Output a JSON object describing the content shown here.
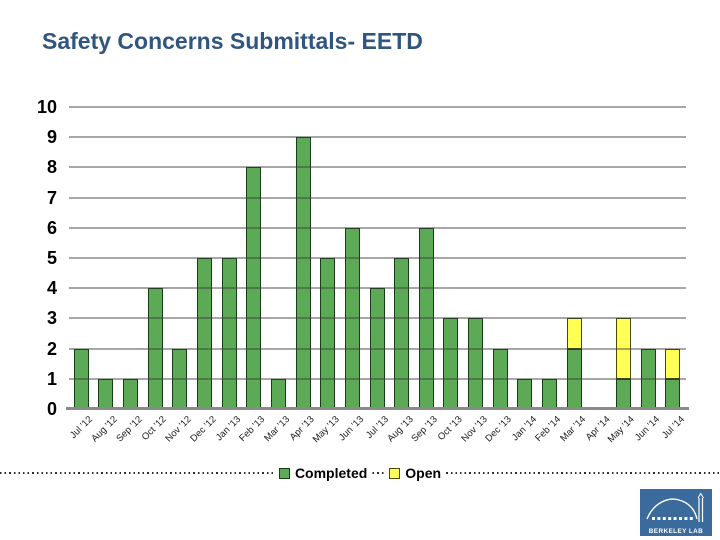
{
  "title": "Safety Concerns Submittals- EETD",
  "chart_data": {
    "type": "bar",
    "stacked": true,
    "title": "Safety Concerns Submittals- EETD",
    "categories": [
      "Jul '12",
      "Aug '12",
      "Sep '12",
      "Oct '12",
      "Nov '12",
      "Dec '12",
      "Jan '13",
      "Feb '13",
      "Mar '13",
      "Apr '13",
      "May '13",
      "Jun '13",
      "Jul '13",
      "Aug '13",
      "Sep '13",
      "Oct '13",
      "Nov '13",
      "Dec '13",
      "Jan '14",
      "Feb '14",
      "Mar '14",
      "Apr '14",
      "May '14",
      "Jun '14",
      "Jul '14"
    ],
    "series": [
      {
        "name": "Completed",
        "color": "#5caa55",
        "border": "#173f17",
        "values": [
          2,
          1,
          1,
          4,
          2,
          5,
          5,
          8,
          1,
          9,
          5,
          6,
          4,
          5,
          6,
          3,
          3,
          2,
          1,
          1,
          2,
          0,
          1,
          2,
          1
        ]
      },
      {
        "name": "Open",
        "color": "#ffff55",
        "border": "#4a4a00",
        "values": [
          0,
          0,
          0,
          0,
          0,
          0,
          0,
          0,
          0,
          0,
          0,
          0,
          0,
          0,
          0,
          0,
          0,
          0,
          0,
          0,
          1,
          0,
          2,
          0,
          1
        ]
      }
    ],
    "ylim": [
      0,
      10
    ],
    "ytick_step": 1,
    "ytick_labels": [
      "0",
      "1",
      "2",
      "3",
      "4",
      "5",
      "6",
      "7",
      "8",
      "9",
      "10"
    ],
    "grid": "horizontal",
    "legend_position": "bottom-center"
  },
  "logo": {
    "text": "BERKELEY LAB"
  }
}
